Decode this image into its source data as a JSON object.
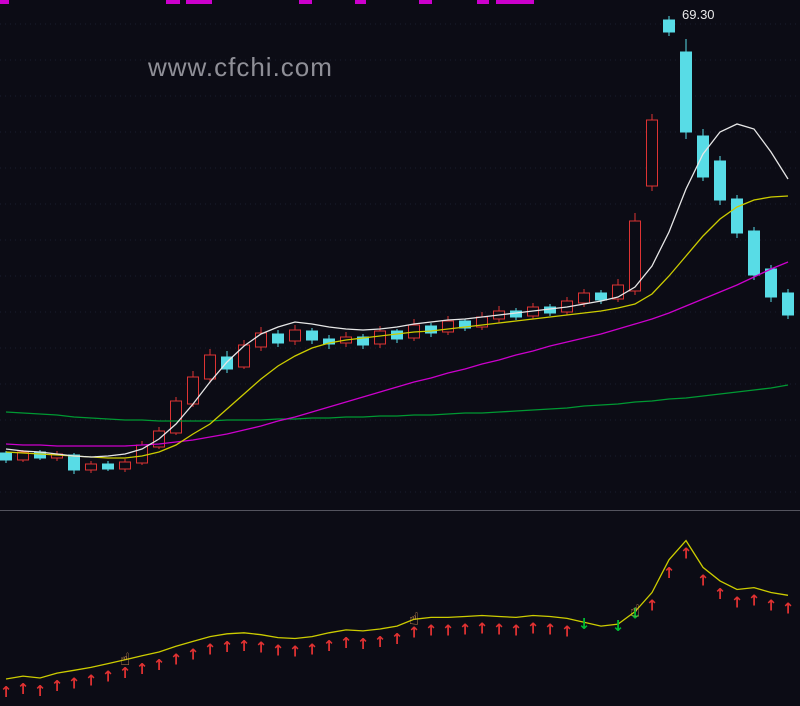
{
  "window": {
    "watermark": "www.cfchi.com"
  },
  "annotations": {
    "price_label": "69.30"
  },
  "colors": {
    "background": "#0c0c15",
    "up_candle": "#dd3333",
    "down_candle": "#58dce6",
    "ma_white": "#e6e6e6",
    "ma_yellow": "#cccc00",
    "ma_magenta": "#cc00cc",
    "ma_green": "#009933",
    "indicator_yellow": "#cccc00",
    "arrow_up": "#e03232",
    "arrow_down": "#00bb33",
    "hand": "#f2a85c",
    "grid": "#1a1e30",
    "divider": "#54545e",
    "fragment": "#cc00cc",
    "label_text": "#e9e9e9",
    "watermark_text": "#9b9ba3"
  },
  "icons": {
    "up_arrow": "↑",
    "down_arrow": "↓",
    "hand": "☝"
  },
  "top_fragments": [
    {
      "x": 0,
      "w": 9
    },
    {
      "x": 166,
      "w": 14
    },
    {
      "x": 186,
      "w": 26
    },
    {
      "x": 299,
      "w": 13
    },
    {
      "x": 355,
      "w": 11
    },
    {
      "x": 419,
      "w": 13
    },
    {
      "x": 477,
      "w": 12
    },
    {
      "x": 496,
      "w": 38
    }
  ],
  "chart_data": [
    {
      "type": "candlestick",
      "panel": "main",
      "title": "",
      "xlabel": "",
      "ylabel": "",
      "grid": "dotted-horizontal",
      "ylim": [
        20.5,
        70.5
      ],
      "annotation": {
        "text": "69.30",
        "at_index": 39,
        "value": 69.3
      },
      "candles": [
        [
          25.6,
          25.8,
          24.6,
          24.9
        ],
        [
          24.9,
          25.9,
          24.7,
          25.7
        ],
        [
          25.7,
          25.9,
          24.9,
          25.1
        ],
        [
          25.1,
          25.8,
          24.8,
          25.5
        ],
        [
          25.4,
          25.6,
          23.5,
          23.9
        ],
        [
          23.9,
          24.8,
          23.6,
          24.5
        ],
        [
          24.5,
          24.8,
          23.8,
          24.0
        ],
        [
          24.0,
          25.0,
          23.7,
          24.7
        ],
        [
          24.6,
          26.8,
          24.4,
          26.4
        ],
        [
          26.2,
          28.2,
          26.0,
          27.8
        ],
        [
          27.6,
          31.2,
          27.4,
          30.8
        ],
        [
          30.5,
          33.8,
          30.2,
          33.2
        ],
        [
          33.0,
          36.0,
          32.6,
          35.4
        ],
        [
          35.2,
          35.8,
          33.6,
          34.0
        ],
        [
          34.2,
          36.9,
          34.0,
          36.4
        ],
        [
          36.2,
          38.2,
          35.8,
          37.6
        ],
        [
          37.5,
          37.9,
          36.2,
          36.6
        ],
        [
          36.8,
          38.4,
          36.4,
          37.9
        ],
        [
          37.8,
          38.1,
          36.5,
          36.9
        ],
        [
          37.0,
          37.4,
          36.0,
          36.5
        ],
        [
          36.6,
          37.7,
          36.2,
          37.2
        ],
        [
          37.2,
          37.5,
          36.0,
          36.4
        ],
        [
          36.5,
          38.3,
          36.1,
          37.8
        ],
        [
          37.8,
          38.0,
          36.6,
          37.0
        ],
        [
          37.1,
          39.0,
          36.8,
          38.4
        ],
        [
          38.3,
          38.6,
          37.2,
          37.6
        ],
        [
          37.7,
          39.3,
          37.4,
          38.8
        ],
        [
          38.8,
          39.0,
          37.8,
          38.1
        ],
        [
          38.2,
          39.7,
          37.9,
          39.2
        ],
        [
          39.0,
          40.3,
          38.6,
          39.8
        ],
        [
          39.8,
          40.1,
          38.9,
          39.2
        ],
        [
          39.3,
          40.6,
          39.0,
          40.2
        ],
        [
          40.2,
          40.5,
          39.3,
          39.6
        ],
        [
          39.7,
          41.2,
          39.4,
          40.8
        ],
        [
          40.6,
          42.0,
          40.2,
          41.6
        ],
        [
          41.6,
          41.9,
          40.5,
          40.9
        ],
        [
          41.0,
          43.0,
          40.7,
          42.4
        ],
        [
          41.8,
          49.6,
          41.4,
          48.8
        ],
        [
          52.3,
          59.5,
          51.8,
          58.9
        ],
        [
          68.9,
          69.3,
          67.3,
          67.7
        ],
        [
          65.7,
          67.0,
          57.0,
          57.7
        ],
        [
          57.3,
          58.0,
          52.8,
          53.2
        ],
        [
          54.8,
          55.3,
          50.4,
          50.9
        ],
        [
          51.0,
          51.4,
          47.1,
          47.6
        ],
        [
          47.8,
          48.2,
          42.9,
          43.4
        ],
        [
          44.0,
          44.4,
          40.7,
          41.2
        ],
        [
          41.6,
          42.0,
          39.0,
          39.4
        ]
      ],
      "overlays": [
        {
          "name": "ma-green",
          "color": "#009933",
          "values": [
            29.7,
            29.6,
            29.5,
            29.4,
            29.2,
            29.1,
            29.0,
            28.9,
            28.9,
            28.8,
            28.8,
            28.8,
            28.8,
            28.9,
            28.9,
            28.9,
            29.0,
            29.0,
            29.1,
            29.1,
            29.2,
            29.2,
            29.3,
            29.3,
            29.4,
            29.4,
            29.5,
            29.6,
            29.6,
            29.7,
            29.8,
            29.9,
            30.0,
            30.1,
            30.3,
            30.4,
            30.5,
            30.7,
            30.8,
            31.0,
            31.1,
            31.3,
            31.5,
            31.7,
            31.9,
            32.1,
            32.4
          ]
        },
        {
          "name": "ma-magenta",
          "color": "#cc00cc",
          "values": [
            26.5,
            26.4,
            26.4,
            26.3,
            26.3,
            26.3,
            26.3,
            26.3,
            26.4,
            26.5,
            26.7,
            26.9,
            27.2,
            27.5,
            27.9,
            28.3,
            28.8,
            29.2,
            29.7,
            30.2,
            30.7,
            31.2,
            31.7,
            32.2,
            32.7,
            33.1,
            33.6,
            34.0,
            34.5,
            34.9,
            35.4,
            35.8,
            36.3,
            36.7,
            37.1,
            37.5,
            38.0,
            38.5,
            39.0,
            39.6,
            40.3,
            41.0,
            41.7,
            42.4,
            43.2,
            44.0,
            44.7
          ]
        },
        {
          "name": "ma-yellow",
          "color": "#cccc00",
          "values": [
            25.7,
            25.6,
            25.5,
            25.4,
            25.3,
            25.2,
            25.1,
            25.1,
            25.3,
            25.7,
            26.4,
            27.5,
            28.5,
            30.0,
            31.5,
            33.0,
            34.3,
            35.3,
            36.1,
            36.6,
            36.9,
            37.1,
            37.3,
            37.5,
            37.7,
            37.8,
            38.0,
            38.2,
            38.4,
            38.6,
            38.8,
            39.0,
            39.2,
            39.4,
            39.6,
            39.8,
            40.1,
            40.5,
            41.5,
            43.3,
            45.3,
            47.3,
            49.0,
            50.2,
            50.9,
            51.2,
            51.3
          ]
        },
        {
          "name": "ma-white",
          "color": "#e6e6e6",
          "values": [
            26.0,
            25.8,
            25.7,
            25.5,
            25.3,
            25.2,
            25.3,
            25.5,
            26.0,
            27.0,
            28.5,
            30.5,
            32.7,
            34.7,
            36.3,
            37.5,
            38.2,
            38.7,
            38.5,
            38.2,
            38.0,
            37.9,
            38.0,
            38.2,
            38.5,
            38.7,
            38.9,
            39.0,
            39.2,
            39.4,
            39.6,
            39.8,
            40.0,
            40.2,
            40.5,
            40.8,
            41.2,
            42.2,
            44.3,
            47.7,
            52.0,
            55.5,
            57.7,
            58.5,
            58.0,
            55.7,
            53.0
          ]
        }
      ]
    },
    {
      "type": "line",
      "panel": "sub",
      "title": "",
      "grid": "off",
      "ylim": [
        0,
        100
      ],
      "series": [
        {
          "name": "indicator-yellow",
          "color": "#cccc00",
          "values": [
            13.3,
            15.0,
            13.9,
            16.7,
            18.3,
            20.0,
            22.2,
            24.4,
            26.7,
            28.9,
            32.2,
            35.0,
            37.8,
            39.4,
            40.0,
            38.9,
            37.2,
            36.7,
            37.8,
            40.0,
            41.7,
            41.1,
            42.2,
            43.9,
            47.8,
            48.9,
            48.9,
            49.4,
            50.0,
            49.4,
            48.9,
            50.0,
            49.4,
            48.3,
            46.1,
            43.9,
            45.0,
            52.2,
            63.3,
            82.2,
            93.3,
            77.8,
            70.0,
            65.0,
            66.1,
            63.3,
            61.7
          ]
        }
      ],
      "signals": {
        "up_arrow_indices": [
          0,
          1,
          2,
          3,
          4,
          5,
          6,
          7,
          8,
          9,
          10,
          11,
          12,
          13,
          14,
          15,
          16,
          17,
          18,
          19,
          20,
          21,
          22,
          23,
          24,
          25,
          26,
          27,
          28,
          29,
          30,
          31,
          32,
          33,
          38,
          39,
          40,
          41,
          42,
          43,
          44,
          45,
          46
        ],
        "down_arrow_indices": [
          34,
          36,
          37
        ],
        "hand_indices": [
          7,
          24,
          37
        ]
      }
    }
  ]
}
